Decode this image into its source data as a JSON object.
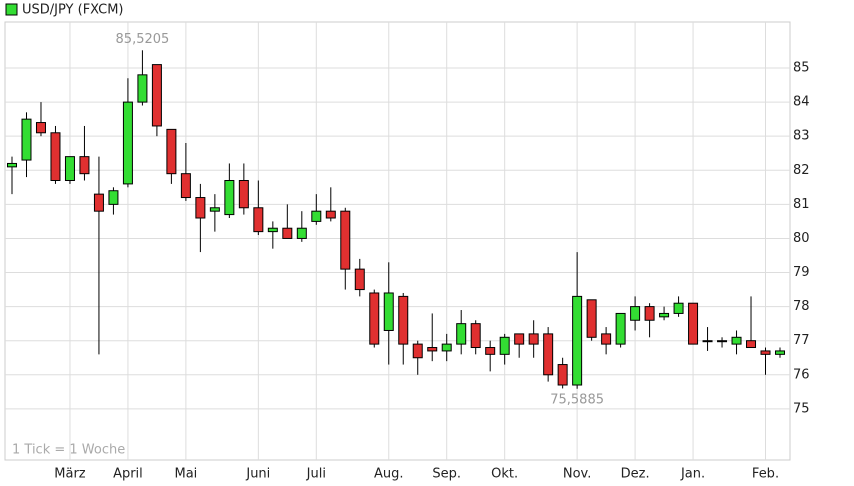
{
  "chart_data": {
    "type": "candlestick",
    "legend": "USD/JPY (FXCM)",
    "note": "1 Tick = 1 Woche",
    "up_color": "#33dd33",
    "down_color": "#e03030",
    "categories": [
      null,
      null,
      null,
      null,
      "März",
      null,
      null,
      null,
      "April",
      null,
      null,
      null,
      "Mai",
      null,
      null,
      null,
      null,
      "Juni",
      null,
      null,
      null,
      "Juli",
      null,
      null,
      null,
      null,
      "Aug.",
      null,
      null,
      null,
      "Sep.",
      null,
      null,
      null,
      "Okt.",
      null,
      null,
      null,
      null,
      "Nov.",
      null,
      null,
      null,
      "Dez.",
      null,
      null,
      null,
      "Jan.",
      null,
      null,
      null,
      null,
      "Feb.",
      null
    ],
    "open": [
      82.1,
      82.3,
      83.4,
      83.1,
      81.7,
      82.4,
      81.3,
      81.0,
      81.6,
      84.0,
      85.1,
      83.2,
      81.9,
      81.2,
      80.8,
      80.7,
      81.7,
      80.9,
      80.2,
      80.3,
      80.0,
      80.5,
      80.8,
      80.8,
      79.1,
      78.4,
      77.3,
      78.3,
      76.9,
      76.8,
      76.7,
      76.9,
      77.5,
      76.8,
      76.6,
      77.2,
      77.2,
      77.2,
      76.3,
      75.7,
      78.2,
      77.2,
      76.9,
      77.6,
      78.0,
      77.7,
      77.8,
      78.1,
      77.0,
      77.0,
      76.9,
      77.0,
      76.7,
      76.6
    ],
    "high": [
      82.4,
      83.7,
      84.0,
      83.3,
      82.4,
      83.3,
      82.4,
      81.5,
      84.7,
      85.5205,
      85.1,
      83.2,
      82.8,
      81.6,
      81.3,
      82.2,
      82.2,
      81.7,
      80.5,
      81.0,
      80.8,
      81.3,
      81.5,
      80.9,
      79.4,
      78.5,
      79.3,
      78.4,
      77.0,
      77.8,
      77.2,
      77.9,
      77.6,
      77.0,
      77.2,
      77.2,
      77.6,
      77.4,
      76.5,
      79.6,
      78.2,
      77.4,
      77.8,
      78.3,
      78.1,
      78.0,
      78.3,
      78.1,
      77.4,
      77.1,
      77.3,
      78.3,
      76.8,
      76.8
    ],
    "low": [
      81.3,
      81.8,
      83.0,
      81.6,
      81.6,
      81.7,
      76.6,
      80.7,
      81.5,
      83.9,
      83.0,
      81.6,
      81.1,
      79.6,
      80.2,
      80.6,
      80.7,
      80.1,
      79.7,
      80.0,
      79.9,
      80.4,
      80.5,
      78.5,
      78.3,
      76.8,
      76.3,
      76.3,
      76.0,
      76.4,
      76.4,
      76.6,
      76.6,
      76.1,
      76.3,
      76.5,
      76.5,
      75.8,
      75.6,
      75.5885,
      77.0,
      76.6,
      76.8,
      77.3,
      77.1,
      77.6,
      77.7,
      76.9,
      76.7,
      76.8,
      76.6,
      76.8,
      76.0,
      76.5
    ],
    "close": [
      82.2,
      83.5,
      83.1,
      81.7,
      82.4,
      81.9,
      80.8,
      81.4,
      84.0,
      84.8,
      83.3,
      81.9,
      81.2,
      80.6,
      80.9,
      81.7,
      80.9,
      80.2,
      80.3,
      80.0,
      80.3,
      80.8,
      80.6,
      79.1,
      78.5,
      76.9,
      78.4,
      76.9,
      76.5,
      76.7,
      76.9,
      77.5,
      76.8,
      76.6,
      77.1,
      76.9,
      76.9,
      76.0,
      75.7,
      78.3,
      77.1,
      76.9,
      77.8,
      78.0,
      77.6,
      77.8,
      78.1,
      76.9,
      77.0,
      77.0,
      77.1,
      76.8,
      76.6,
      76.7
    ],
    "annotations": [
      {
        "label": "85,5205",
        "value": 85.5205,
        "index": 9
      },
      {
        "label": "75,5885",
        "value": 75.5885,
        "index": 39
      }
    ],
    "ylim": [
      73.5,
      86.35
    ],
    "yticks": [
      75,
      76,
      77,
      78,
      79,
      80,
      81,
      82,
      83,
      84,
      85
    ],
    "grid": true
  }
}
